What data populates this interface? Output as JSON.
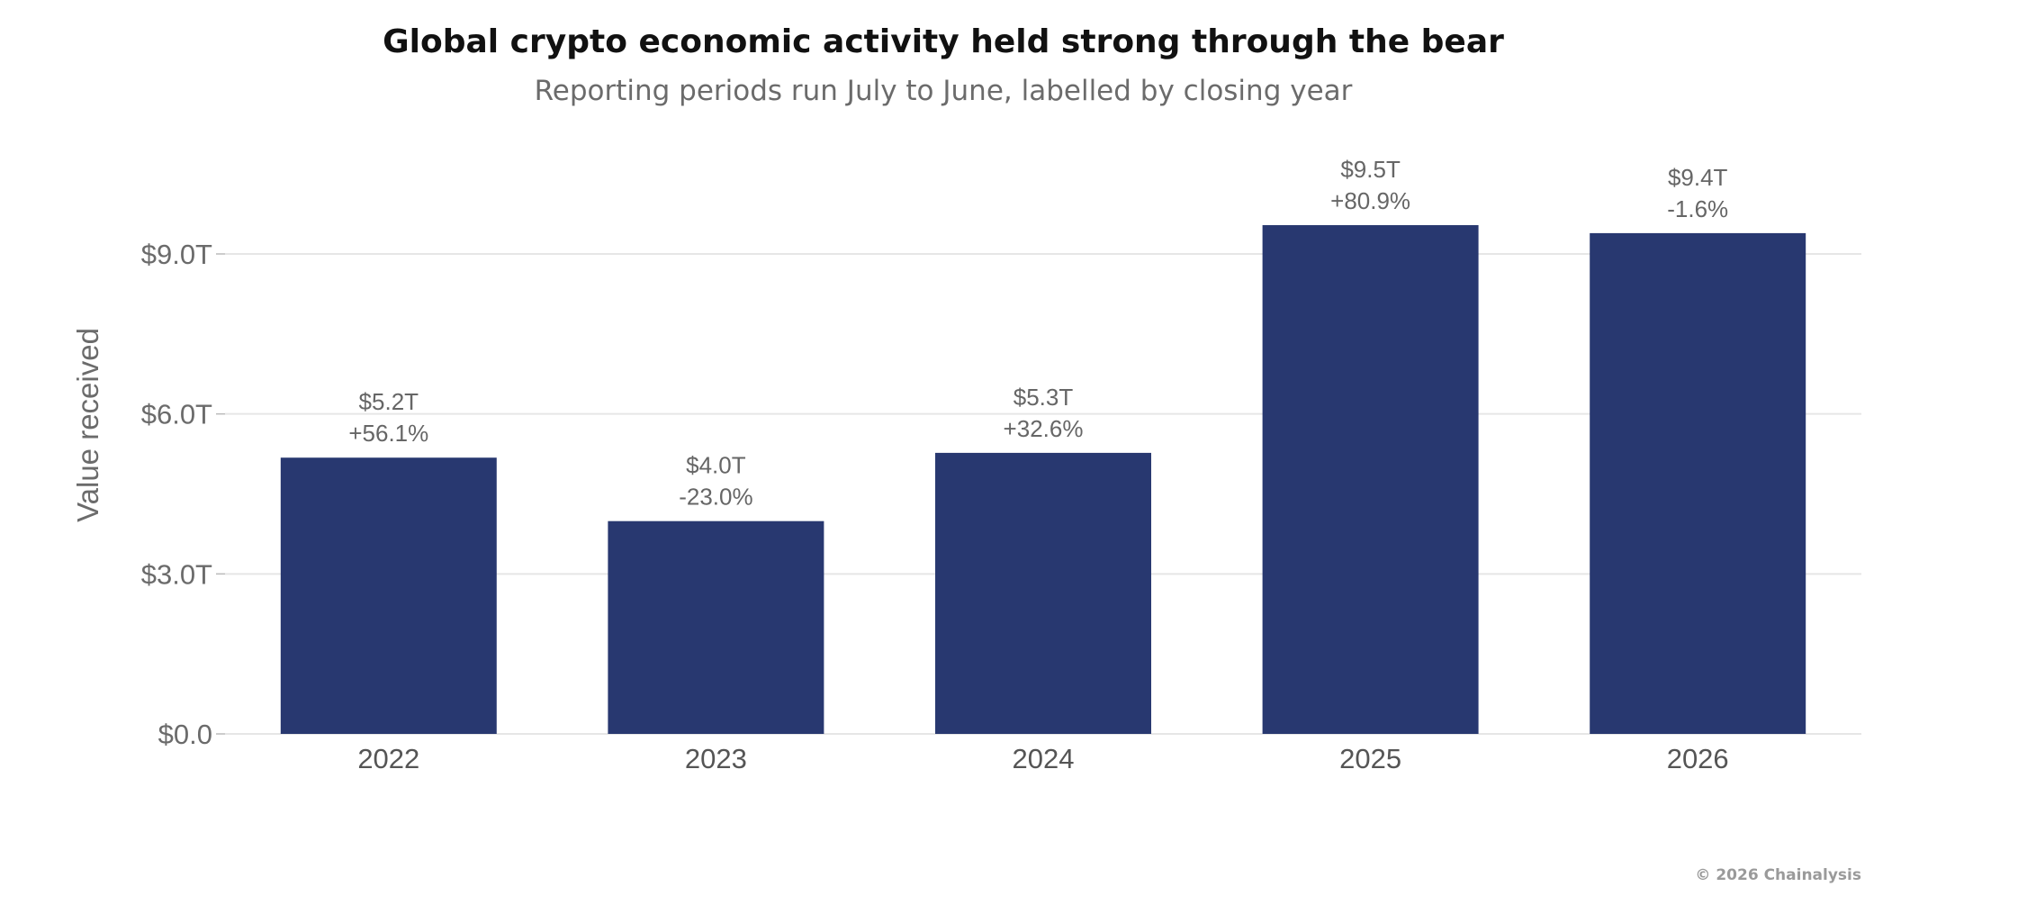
{
  "chart_data": {
    "type": "bar",
    "title": "Global crypto economic activity held strong through the bear",
    "subtitle": "Reporting periods run July to June, labelled by closing year",
    "xlabel": "",
    "ylabel": "Value received",
    "categories": [
      "2022",
      "2023",
      "2024",
      "2025",
      "2026"
    ],
    "values": [
      5.18,
      3.99,
      5.27,
      9.54,
      9.39
    ],
    "value_labels": [
      "$5.2T",
      "$4.0T",
      "$5.3T",
      "$9.5T",
      "$9.4T"
    ],
    "change_labels": [
      "+56.1%",
      "-23.0%",
      "+32.6%",
      "+80.9%",
      "-1.6%"
    ],
    "yticks": [
      0,
      3,
      6,
      9
    ],
    "ytick_labels": [
      "$0.0",
      "$3.0T",
      "$6.0T",
      "$9.0T"
    ],
    "ylim": [
      0,
      9.0
    ],
    "grid": true,
    "legend": "none",
    "bar_color": "#283870",
    "credit": "© 2026 Chainalysis"
  }
}
